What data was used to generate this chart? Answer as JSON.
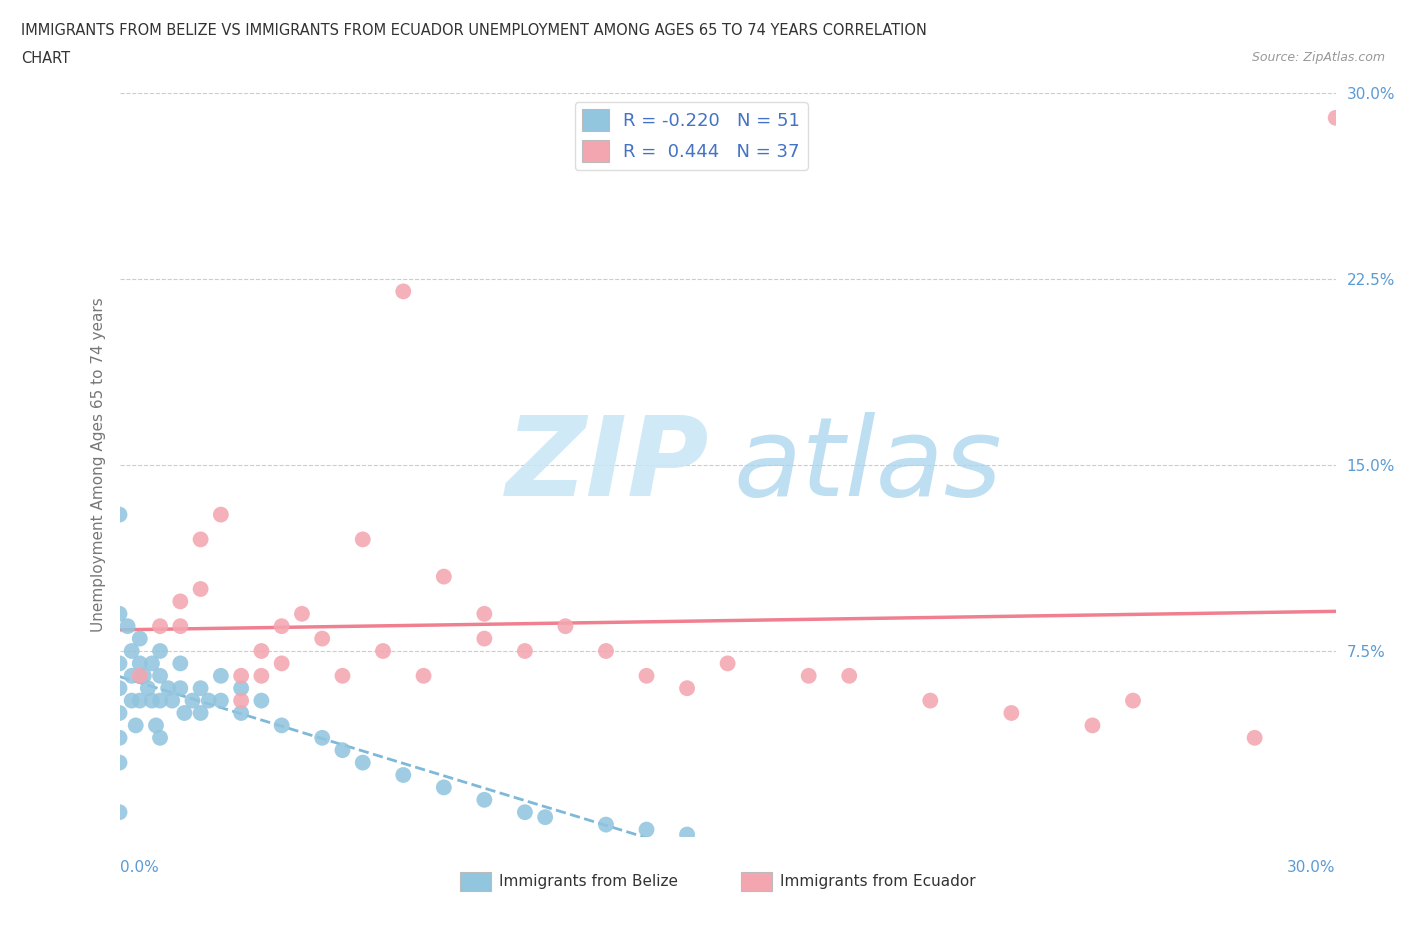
{
  "title_line1": "IMMIGRANTS FROM BELIZE VS IMMIGRANTS FROM ECUADOR UNEMPLOYMENT AMONG AGES 65 TO 74 YEARS CORRELATION",
  "title_line2": "CHART",
  "source_text": "Source: ZipAtlas.com",
  "ylabel": "Unemployment Among Ages 65 to 74 years",
  "xlim": [
    0.0,
    0.3
  ],
  "ylim": [
    0.0,
    0.3
  ],
  "yticks": [
    0.075,
    0.15,
    0.225,
    0.3
  ],
  "ytick_labels": [
    "7.5%",
    "15.0%",
    "22.5%",
    "30.0%"
  ],
  "legend_label1": "Immigrants from Belize",
  "legend_label2": "Immigrants from Ecuador",
  "R_belize": -0.22,
  "N_belize": 51,
  "R_ecuador": 0.444,
  "N_ecuador": 37,
  "color_belize": "#92C5DE",
  "color_ecuador": "#F4A6B0",
  "color_belize_line": "#7FB8D8",
  "color_ecuador_line": "#F08090",
  "belize_x": [
    0.0,
    0.0,
    0.0,
    0.0,
    0.0,
    0.0,
    0.0,
    0.0,
    0.002,
    0.003,
    0.003,
    0.003,
    0.004,
    0.005,
    0.005,
    0.005,
    0.006,
    0.007,
    0.008,
    0.008,
    0.009,
    0.01,
    0.01,
    0.01,
    0.01,
    0.012,
    0.013,
    0.015,
    0.015,
    0.016,
    0.018,
    0.02,
    0.02,
    0.022,
    0.025,
    0.025,
    0.03,
    0.03,
    0.035,
    0.04,
    0.05,
    0.055,
    0.06,
    0.07,
    0.08,
    0.09,
    0.1,
    0.105,
    0.12,
    0.13,
    0.14
  ],
  "belize_y": [
    0.13,
    0.09,
    0.07,
    0.06,
    0.05,
    0.04,
    0.03,
    0.01,
    0.085,
    0.075,
    0.065,
    0.055,
    0.045,
    0.08,
    0.07,
    0.055,
    0.065,
    0.06,
    0.07,
    0.055,
    0.045,
    0.075,
    0.065,
    0.055,
    0.04,
    0.06,
    0.055,
    0.07,
    0.06,
    0.05,
    0.055,
    0.06,
    0.05,
    0.055,
    0.065,
    0.055,
    0.06,
    0.05,
    0.055,
    0.045,
    0.04,
    0.035,
    0.03,
    0.025,
    0.02,
    0.015,
    0.01,
    0.008,
    0.005,
    0.003,
    0.001
  ],
  "ecuador_x": [
    0.005,
    0.01,
    0.015,
    0.015,
    0.02,
    0.02,
    0.025,
    0.03,
    0.03,
    0.035,
    0.035,
    0.04,
    0.04,
    0.045,
    0.05,
    0.055,
    0.06,
    0.065,
    0.07,
    0.075,
    0.08,
    0.09,
    0.09,
    0.1,
    0.11,
    0.12,
    0.13,
    0.14,
    0.15,
    0.17,
    0.2,
    0.22,
    0.24,
    0.28,
    0.3,
    0.25,
    0.18
  ],
  "ecuador_y": [
    0.065,
    0.085,
    0.095,
    0.085,
    0.12,
    0.1,
    0.13,
    0.065,
    0.055,
    0.075,
    0.065,
    0.085,
    0.07,
    0.09,
    0.08,
    0.065,
    0.12,
    0.075,
    0.22,
    0.065,
    0.105,
    0.09,
    0.08,
    0.075,
    0.085,
    0.075,
    0.065,
    0.06,
    0.07,
    0.065,
    0.055,
    0.05,
    0.045,
    0.04,
    0.29,
    0.055,
    0.065
  ]
}
